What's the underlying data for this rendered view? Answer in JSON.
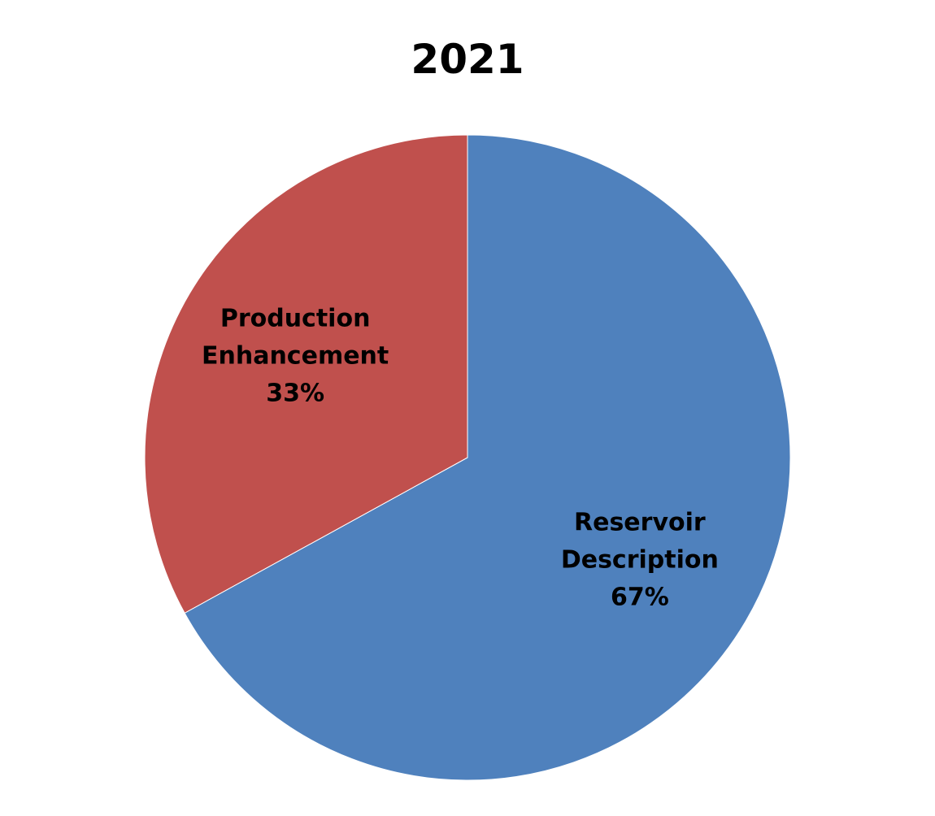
{
  "chart_data": {
    "type": "pie",
    "title": "2021",
    "start_angle_deg": 0,
    "direction": "clockwise",
    "slices": [
      {
        "label_lines": [
          "Reservoir",
          "Description"
        ],
        "value": 67,
        "percent_label": "67%",
        "color": "#4F81BD"
      },
      {
        "label_lines": [
          "Production",
          "Enhancement"
        ],
        "value": 33,
        "percent_label": "33%",
        "color": "#C0504D"
      }
    ],
    "data_labels": "inside",
    "legend": "none"
  }
}
